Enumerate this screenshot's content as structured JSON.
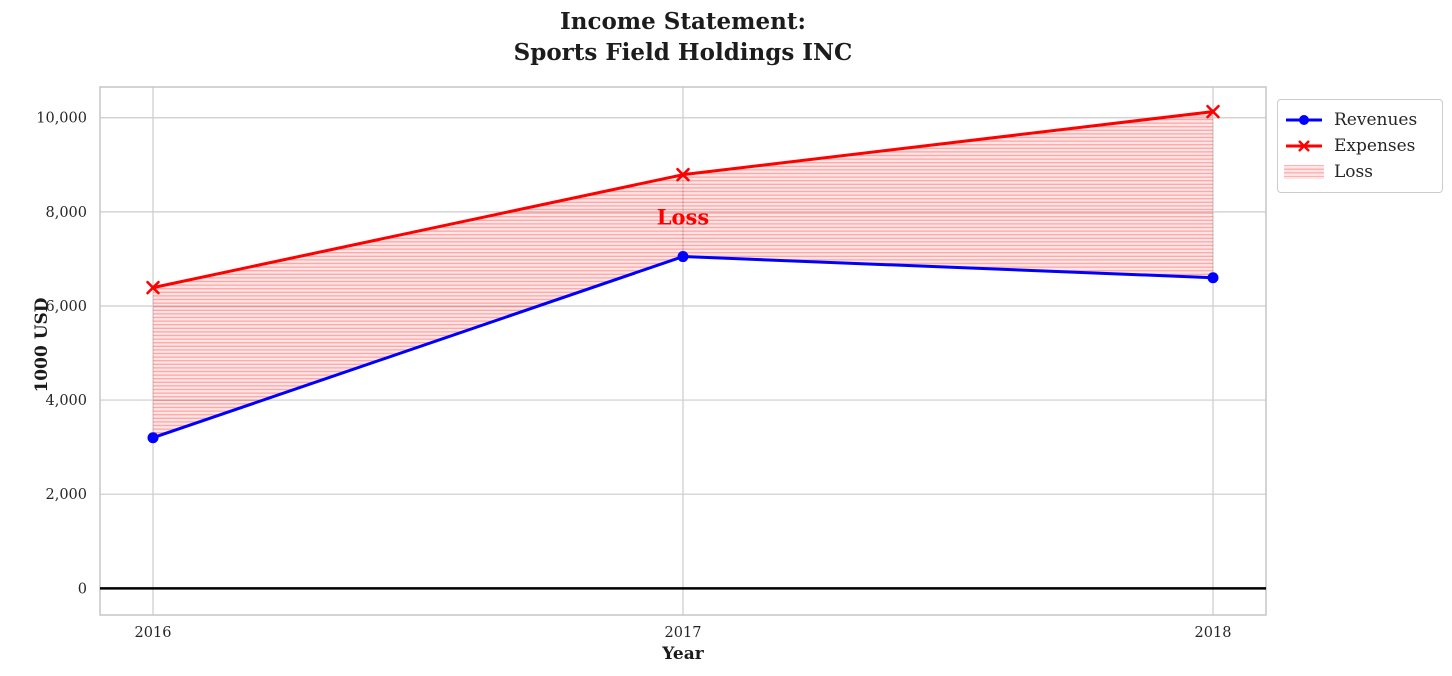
{
  "title": {
    "line1": "Income Statement:",
    "line2": "Sports Field Holdings INC"
  },
  "axes": {
    "xlabel": "Year",
    "ylabel": "1000 USD"
  },
  "annotation": {
    "loss_label": "Loss",
    "color": "#ff0000"
  },
  "legend": {
    "items": [
      {
        "label": "Revenues",
        "sample": "line-circle",
        "color": "#0000ff"
      },
      {
        "label": "Expenses",
        "sample": "line-x",
        "color": "#ff0000"
      },
      {
        "label": "Loss",
        "sample": "hatched-patch",
        "color": "rgba(255,0,0,0.15)"
      }
    ]
  },
  "palette": {
    "revenues": "#0000ff",
    "expenses": "#ff0000",
    "loss_fill": "rgba(255,0,0,0.10)",
    "loss_hatch": "rgba(255,0,0,0.30)",
    "grid": "#cccccc",
    "spine": "#c2c2c2",
    "text": "#262626",
    "zero_line": "#000000"
  },
  "chart_data": {
    "type": "line",
    "title": "Income Statement: Sports Field Holdings INC",
    "xlabel": "Year",
    "ylabel": "1000 USD",
    "x": [
      2016,
      2017,
      2018
    ],
    "series": [
      {
        "name": "Revenues",
        "values": [
          3200,
          7050,
          6600
        ],
        "color": "#0000ff",
        "marker": "circle",
        "linewidth": 3
      },
      {
        "name": "Expenses",
        "values": [
          6390,
          8790,
          10130
        ],
        "color": "#ff0000",
        "marker": "x",
        "linewidth": 3
      },
      {
        "name": "Loss",
        "type": "fill-between",
        "upper": "Expenses",
        "lower": "Revenues",
        "style": "horizontal-hatch"
      }
    ],
    "annotation": {
      "text": "Loss",
      "x": 2017,
      "y": 7900
    },
    "xticks": {
      "values": [
        2016,
        2017,
        2018
      ],
      "labels": [
        "2016",
        "2017",
        "2018"
      ]
    },
    "yticks": {
      "values": [
        0,
        2000,
        4000,
        6000,
        8000,
        10000
      ],
      "labels": [
        "0",
        "2,000",
        "4,000",
        "6,000",
        "8,000",
        "10,000"
      ]
    },
    "xlim": [
      2015.9,
      2018.1
    ],
    "ylim": [
      -567,
      10653
    ],
    "grid": true,
    "zero_line": 0,
    "legend_position": "upper-right-outside"
  }
}
